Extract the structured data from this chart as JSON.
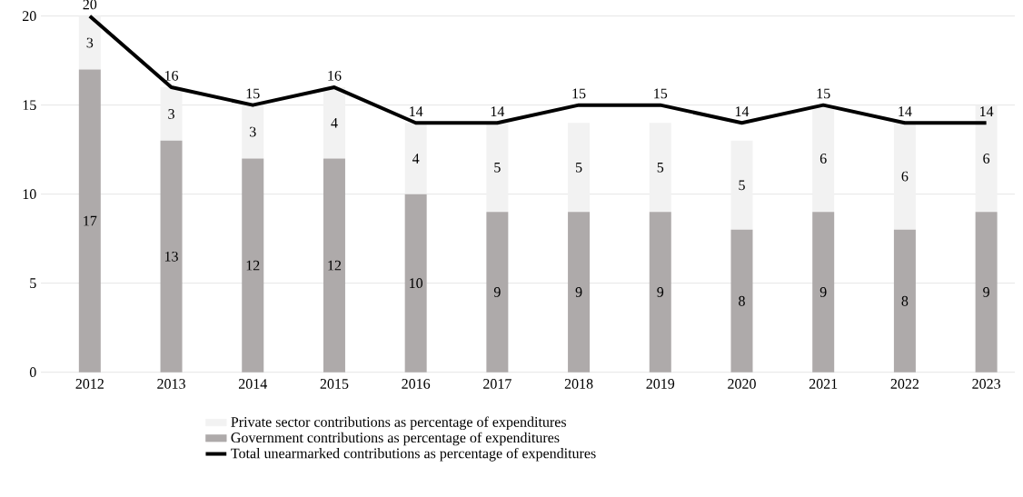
{
  "chart_data": {
    "type": "bar",
    "stacked": true,
    "categories": [
      "2012",
      "2013",
      "2014",
      "2015",
      "2016",
      "2017",
      "2018",
      "2019",
      "2020",
      "2021",
      "2022",
      "2023"
    ],
    "series": [
      {
        "name": "Government contributions  as percentage  of expenditures",
        "color": "#aeaaaa",
        "values": [
          17,
          13,
          12,
          12,
          10,
          9,
          9,
          9,
          8,
          9,
          8,
          9
        ]
      },
      {
        "name": "Private sector contributions  as percentage  of expenditures",
        "color": "#f2f2f2",
        "values": [
          3,
          3,
          3,
          4,
          4,
          5,
          5,
          5,
          5,
          6,
          6,
          6
        ]
      },
      {
        "name": "Total unearmarked contributions  as percentage  of expenditures",
        "type": "line",
        "color": "#000000",
        "values": [
          20,
          16,
          15,
          16,
          14,
          14,
          15,
          15,
          14,
          15,
          14,
          14
        ]
      }
    ],
    "ylim": [
      0,
      20
    ],
    "yticks": [
      0,
      5,
      10,
      15,
      20
    ],
    "grid": "y",
    "legend": "bottom",
    "data_labels": true
  }
}
